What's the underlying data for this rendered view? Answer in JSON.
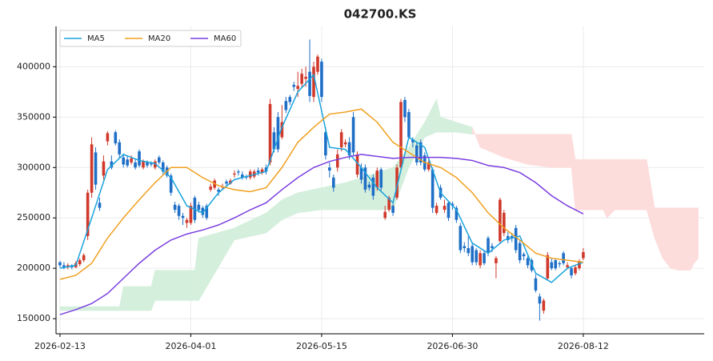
{
  "chart_data": {
    "type": "candlestick",
    "title": "042700.KS",
    "up_color": "#d0392b",
    "down_color": "#1f6fc7",
    "x": [
      0,
      1,
      2,
      3,
      4,
      5,
      6,
      7,
      8,
      9,
      10,
      11,
      12,
      13,
      14,
      15,
      16,
      17,
      18,
      19,
      20,
      21,
      22,
      23,
      24,
      25,
      26,
      27,
      28,
      29,
      30,
      31,
      32,
      33,
      34,
      35,
      36,
      37,
      38,
      39,
      40,
      41,
      42,
      43,
      44,
      45,
      46,
      47,
      48,
      49,
      50,
      51,
      52,
      53,
      54,
      55,
      56,
      57,
      58,
      59,
      60,
      61,
      62,
      63,
      64,
      65,
      66,
      67,
      68,
      69,
      70,
      71,
      72,
      73,
      74,
      75,
      76,
      77,
      78,
      79,
      80,
      81,
      82,
      83,
      84,
      85,
      86,
      87,
      88,
      89,
      90,
      91,
      92,
      93,
      94,
      95,
      96,
      97,
      98,
      99,
      100,
      101,
      102,
      103,
      104,
      105,
      106,
      107,
      108,
      109,
      110,
      111,
      112,
      113,
      114,
      115,
      116,
      117,
      118,
      119,
      120,
      121,
      122,
      123,
      124,
      125,
      126,
      127,
      128,
      129,
      130,
      131,
      132
    ],
    "ohlc": [
      [
        206000,
        207000,
        201000,
        203000
      ],
      [
        203000,
        206000,
        199000,
        201000
      ],
      [
        201000,
        205000,
        199000,
        203000
      ],
      [
        203000,
        204000,
        199000,
        201000
      ],
      [
        201000,
        207000,
        200000,
        205000
      ],
      [
        204000,
        210000,
        202000,
        208000
      ],
      [
        208000,
        215000,
        206000,
        213000
      ],
      [
        232000,
        278000,
        228000,
        275000
      ],
      [
        275000,
        330000,
        270000,
        323000
      ],
      [
        315000,
        320000,
        278000,
        283000
      ],
      [
        265000,
        270000,
        257000,
        260000
      ],
      [
        292000,
        312000,
        288000,
        306000
      ],
      [
        326000,
        336000,
        322000,
        334000
      ],
      [
        306000,
        312000,
        298000,
        300000
      ],
      [
        335000,
        337000,
        322000,
        324000
      ],
      [
        325000,
        328000,
        310000,
        313000
      ],
      [
        310000,
        314000,
        300000,
        303000
      ],
      [
        308000,
        311000,
        300000,
        302000
      ],
      [
        305000,
        312000,
        303000,
        309000
      ],
      [
        305000,
        308000,
        298000,
        300000
      ],
      [
        316000,
        318000,
        300000,
        302000
      ],
      [
        300000,
        308000,
        298000,
        306000
      ],
      [
        305000,
        307000,
        300000,
        302000
      ],
      [
        304000,
        306000,
        301000,
        303000
      ],
      [
        300000,
        308000,
        298000,
        306000
      ],
      [
        310000,
        312000,
        303000,
        305000
      ],
      [
        305000,
        307000,
        293000,
        296000
      ],
      [
        300000,
        302000,
        290000,
        292000
      ],
      [
        292000,
        294000,
        272000,
        275000
      ],
      [
        263000,
        266000,
        255000,
        258000
      ],
      [
        262000,
        264000,
        248000,
        252000
      ],
      [
        252000,
        255000,
        243000,
        250000
      ],
      [
        245000,
        250000,
        240000,
        248000
      ],
      [
        245000,
        265000,
        243000,
        262000
      ],
      [
        270000,
        272000,
        245000,
        248000
      ],
      [
        263000,
        266000,
        255000,
        258000
      ],
      [
        260000,
        262000,
        250000,
        253000
      ],
      [
        262000,
        264000,
        248000,
        250000
      ],
      [
        278000,
        284000,
        276000,
        281000
      ],
      [
        280000,
        289000,
        278000,
        287000
      ],
      [
        278000,
        280000,
        272000,
        276000
      ],
      [
        281000,
        284000,
        278000,
        281000
      ],
      [
        286000,
        288000,
        282000,
        284000
      ],
      [
        284000,
        289000,
        283000,
        287000
      ],
      [
        293000,
        297000,
        290000,
        294000
      ],
      [
        296000,
        298000,
        292000,
        295000
      ],
      [
        293000,
        296000,
        288000,
        290000
      ],
      [
        291000,
        293000,
        288000,
        290000
      ],
      [
        290000,
        298000,
        288000,
        296000
      ],
      [
        291000,
        298000,
        289000,
        296000
      ],
      [
        297000,
        300000,
        292000,
        295000
      ],
      [
        295000,
        300000,
        293000,
        298000
      ],
      [
        300000,
        303000,
        293000,
        296000
      ],
      [
        305000,
        368000,
        302000,
        363000
      ],
      [
        335000,
        340000,
        315000,
        318000
      ],
      [
        350000,
        355000,
        315000,
        318000
      ],
      [
        330000,
        362000,
        328000,
        345000
      ],
      [
        366000,
        370000,
        354000,
        357000
      ],
      [
        370000,
        372000,
        362000,
        365000
      ],
      [
        382000,
        385000,
        376000,
        380000
      ],
      [
        378000,
        395000,
        370000,
        381000
      ],
      [
        383000,
        398000,
        380000,
        393000
      ],
      [
        388000,
        400000,
        380000,
        390000
      ],
      [
        395000,
        427000,
        365000,
        371000
      ],
      [
        370000,
        405000,
        365000,
        400000
      ],
      [
        395000,
        412000,
        392000,
        410000
      ],
      [
        405000,
        408000,
        365000,
        370000
      ],
      [
        335000,
        340000,
        308000,
        312000
      ],
      [
        300000,
        305000,
        290000,
        297000
      ],
      [
        290000,
        293000,
        276000,
        280000
      ],
      [
        300000,
        318000,
        296000,
        313000
      ],
      [
        320000,
        338000,
        316000,
        335000
      ],
      [
        323000,
        328000,
        320000,
        325000
      ],
      [
        325000,
        330000,
        308000,
        312000
      ],
      [
        350000,
        355000,
        312000,
        315000
      ],
      [
        293000,
        316000,
        290000,
        313000
      ],
      [
        300000,
        304000,
        284000,
        288000
      ],
      [
        300000,
        303000,
        275000,
        278000
      ],
      [
        283000,
        286000,
        277000,
        280000
      ],
      [
        290000,
        293000,
        268000,
        272000
      ],
      [
        280000,
        300000,
        277000,
        297000
      ],
      [
        298000,
        300000,
        277000,
        280000
      ],
      [
        250000,
        262000,
        248000,
        256000
      ],
      [
        258000,
        272000,
        256000,
        270000
      ],
      [
        262000,
        264000,
        252000,
        255000
      ],
      [
        270000,
        303000,
        268000,
        300000
      ],
      [
        300000,
        368000,
        298000,
        365000
      ],
      [
        367000,
        370000,
        345000,
        350000
      ],
      [
        355000,
        358000,
        328000,
        330000
      ],
      [
        328000,
        330000,
        320000,
        325000
      ],
      [
        322000,
        325000,
        302000,
        305000
      ],
      [
        325000,
        328000,
        302000,
        305000
      ],
      [
        312000,
        315000,
        296000,
        298000
      ],
      [
        298000,
        308000,
        296000,
        305000
      ],
      [
        298000,
        300000,
        255000,
        260000
      ],
      [
        255000,
        265000,
        253000,
        262000
      ],
      [
        280000,
        283000,
        268000,
        270000
      ],
      [
        258000,
        268000,
        255000,
        262000
      ],
      [
        265000,
        267000,
        247000,
        250000
      ],
      [
        264000,
        266000,
        258000,
        262000
      ],
      [
        260000,
        262000,
        245000,
        248000
      ],
      [
        242000,
        245000,
        215000,
        218000
      ],
      [
        222000,
        226000,
        216000,
        220000
      ],
      [
        220000,
        232000,
        212000,
        215000
      ],
      [
        222000,
        225000,
        203000,
        206000
      ],
      [
        218000,
        220000,
        203000,
        206000
      ],
      [
        203000,
        218000,
        200000,
        215000
      ],
      [
        215000,
        217000,
        203000,
        205000
      ],
      [
        230000,
        232000,
        212000,
        215000
      ],
      [
        222000,
        225000,
        216000,
        220000
      ],
      [
        205000,
        212000,
        190000,
        210000
      ],
      [
        227000,
        270000,
        225000,
        268000
      ],
      [
        235000,
        258000,
        232000,
        255000
      ],
      [
        232000,
        236000,
        225000,
        228000
      ],
      [
        232000,
        235000,
        226000,
        230000
      ],
      [
        240000,
        243000,
        215000,
        218000
      ],
      [
        225000,
        228000,
        205000,
        208000
      ],
      [
        214000,
        216000,
        208000,
        212000
      ],
      [
        210000,
        213000,
        200000,
        203000
      ],
      [
        208000,
        210000,
        196000,
        198000
      ],
      [
        190000,
        194000,
        176000,
        178000
      ],
      [
        172000,
        175000,
        148000,
        165000
      ],
      [
        158000,
        170000,
        155000,
        168000
      ],
      [
        190000,
        216000,
        188000,
        213000
      ],
      [
        206000,
        210000,
        198000,
        200000
      ],
      [
        208000,
        210000,
        198000,
        200000
      ],
      [
        205000,
        207000,
        201000,
        204000
      ],
      [
        215000,
        217000,
        203000,
        205000
      ],
      [
        201000,
        206000,
        199000,
        203000
      ],
      [
        200000,
        202000,
        190000,
        193000
      ],
      [
        195000,
        203000,
        193000,
        201000
      ],
      [
        200000,
        209000,
        198000,
        207000
      ],
      [
        210000,
        220000,
        208000,
        216000
      ]
    ],
    "lines": [
      {
        "name": "MA5",
        "color": "#1aa3dc",
        "x": [
          0,
          4,
          8,
          12,
          16,
          20,
          24,
          28,
          32,
          36,
          40,
          44,
          48,
          52,
          56,
          60,
          64,
          68,
          72,
          76,
          80,
          84,
          88,
          92,
          96,
          100,
          104,
          108,
          112,
          116,
          120,
          124,
          128,
          132
        ],
        "values": [
          200000,
          203000,
          250000,
          298000,
          313000,
          307000,
          304000,
          290000,
          262000,
          255000,
          275000,
          288000,
          292000,
          296000,
          340000,
          375000,
          392000,
          320000,
          318000,
          300000,
          280000,
          265000,
          330000,
          320000,
          275000,
          258000,
          225000,
          215000,
          228000,
          232000,
          195000,
          186000,
          200000,
          206000
        ]
      },
      {
        "name": "MA20",
        "color": "#f0a020",
        "x": [
          0,
          4,
          8,
          12,
          16,
          20,
          24,
          28,
          32,
          36,
          40,
          44,
          48,
          52,
          56,
          60,
          64,
          68,
          72,
          76,
          80,
          84,
          88,
          92,
          96,
          100,
          104,
          108,
          112,
          116,
          120,
          124,
          128,
          132
        ],
        "values": [
          189000,
          193000,
          205000,
          230000,
          250000,
          268000,
          285000,
          300000,
          300000,
          290000,
          282000,
          278000,
          276000,
          280000,
          300000,
          325000,
          340000,
          353000,
          355000,
          358000,
          345000,
          325000,
          315000,
          305000,
          300000,
          290000,
          275000,
          255000,
          240000,
          228000,
          215000,
          210000,
          208000,
          206000
        ]
      },
      {
        "name": "MA60",
        "color": "#7b3fe0",
        "x": [
          0,
          4,
          8,
          12,
          16,
          20,
          24,
          28,
          32,
          36,
          40,
          44,
          48,
          52,
          56,
          60,
          64,
          68,
          72,
          76,
          80,
          84,
          88,
          92,
          96,
          100,
          104,
          108,
          112,
          116,
          120,
          124,
          128,
          132
        ],
        "values": [
          154000,
          159000,
          165000,
          175000,
          190000,
          205000,
          218000,
          228000,
          234000,
          238000,
          243000,
          250000,
          258000,
          265000,
          278000,
          290000,
          300000,
          306000,
          310000,
          313000,
          311000,
          309000,
          310000,
          310000,
          310000,
          309000,
          307000,
          302000,
          300000,
          295000,
          285000,
          272000,
          262000,
          254000
        ]
      }
    ],
    "cloud": {
      "up_color": "#d5efdd",
      "down_color": "#fddcdc",
      "x": [
        0,
        8,
        15,
        16,
        23,
        24,
        34,
        35,
        44,
        52,
        56,
        60,
        66,
        72,
        80,
        84,
        88,
        92,
        95,
        96,
        100,
        104,
        106,
        112,
        118,
        124,
        128,
        129,
        130,
        137,
        138,
        140,
        148,
        150,
        152,
        154,
        156,
        159,
        160,
        161
      ],
      "span_a": [
        162000,
        162000,
        162000,
        182000,
        182000,
        198000,
        198000,
        230000,
        240000,
        255000,
        268000,
        275000,
        280000,
        285000,
        295000,
        300000,
        320000,
        345000,
        368000,
        350000,
        345000,
        340000,
        320000,
        310000,
        303000,
        300000,
        300000,
        300000,
        258000,
        258000,
        250000,
        258000,
        258000,
        230000,
        210000,
        200000,
        198000,
        198000,
        205000,
        210000
      ],
      "span_b": [
        158000,
        158000,
        158000,
        158000,
        158000,
        168000,
        168000,
        168000,
        228000,
        235000,
        248000,
        255000,
        258000,
        258000,
        258000,
        258000,
        300000,
        330000,
        335000,
        335000,
        335000,
        333000,
        333000,
        333000,
        333000,
        333000,
        333000,
        333000,
        308000,
        308000,
        308000,
        308000,
        308000,
        260000,
        260000,
        260000,
        260000,
        260000,
        260000,
        260000
      ]
    },
    "xlim": [
      -1,
      162.5
    ],
    "ylim": [
      135000,
      440000
    ],
    "xticks": [
      {
        "value": 0,
        "label": "2026-02-13"
      },
      {
        "value": 33,
        "label": "2026-04-01"
      },
      {
        "value": 66,
        "label": "2026-05-15"
      },
      {
        "value": 99,
        "label": "2026-06-30"
      },
      {
        "value": 132,
        "label": "2026-08-12"
      }
    ],
    "yticks": [
      150000,
      200000,
      250000,
      300000,
      350000,
      400000
    ],
    "grid": true,
    "legend": "upper left"
  }
}
